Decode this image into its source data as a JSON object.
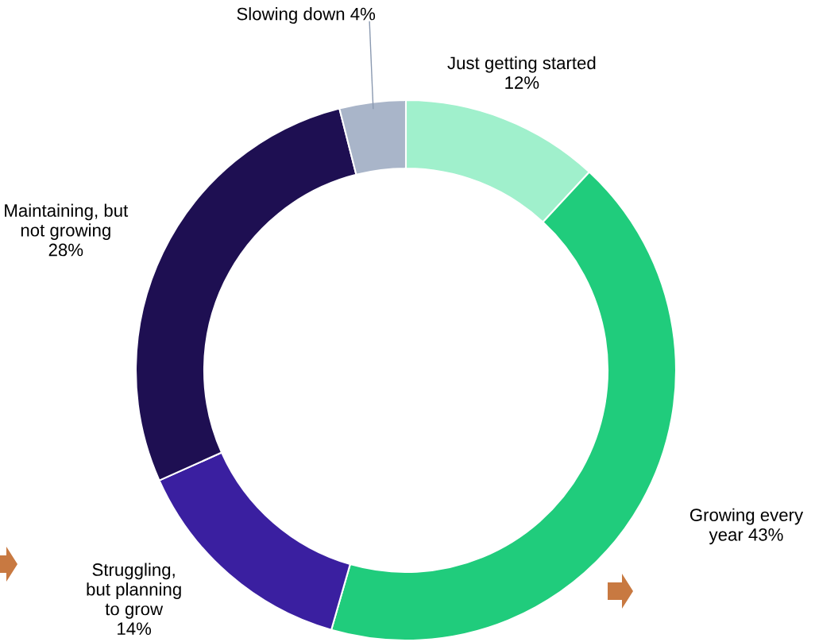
{
  "chart_data": {
    "type": "donut",
    "categories": [
      "Just getting started",
      "Growing every\nyear",
      "Struggling,\nbut planning\nto grow",
      "Maintaining, but\nnot growing",
      "Slowing down"
    ],
    "values": [
      12,
      43,
      14,
      28,
      4
    ],
    "value_labels": [
      "12%",
      "43%",
      "14%",
      "28%",
      "4%"
    ],
    "colors": [
      "#a0f0cc",
      "#20cc7c",
      "#3a1fa0",
      "#1e0f52",
      "#a9b5c9"
    ],
    "legend": false
  }
}
